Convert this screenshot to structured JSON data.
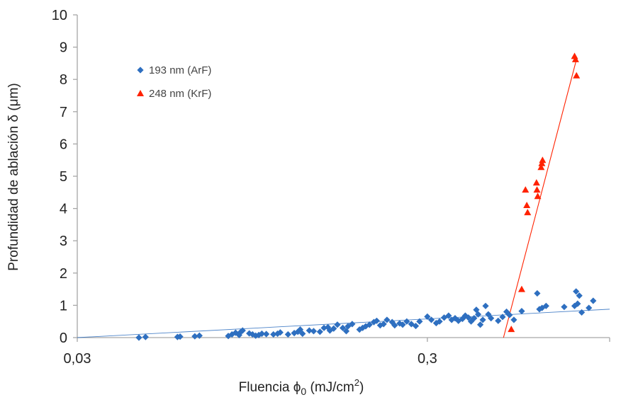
{
  "chart_data": {
    "type": "scatter",
    "title": "",
    "xlabel": "Fluencia ϕ",
    "xlabel_sub": "0",
    "xlabel_unit_pre": " (mJ/cm",
    "xlabel_unit_sup": "2",
    "xlabel_unit_post": ")",
    "ylabel": "Profundidad de ablación δ (μm)",
    "xscale": "log",
    "xlim": [
      0.03,
      0.995
    ],
    "ylim": [
      0,
      10
    ],
    "xticks": [
      0.03,
      0.3
    ],
    "xtick_labels": [
      "0,03",
      "0,3"
    ],
    "yticks": [
      0,
      1,
      2,
      3,
      4,
      5,
      6,
      7,
      8,
      9,
      10
    ],
    "ytick_labels": [
      "0",
      "1",
      "2",
      "3",
      "4",
      "5",
      "6",
      "7",
      "8",
      "9",
      "10"
    ],
    "grid": false,
    "legend_position": "top-left",
    "series": [
      {
        "name": "193 nm (ArF)",
        "marker": "diamond",
        "color": "#2e6fc0",
        "points": [
          [
            0.045,
            0.0
          ],
          [
            0.047,
            0.02
          ],
          [
            0.058,
            0.02
          ],
          [
            0.059,
            0.03
          ],
          [
            0.065,
            0.04
          ],
          [
            0.067,
            0.06
          ],
          [
            0.081,
            0.05
          ],
          [
            0.083,
            0.1
          ],
          [
            0.085,
            0.15
          ],
          [
            0.087,
            0.08
          ],
          [
            0.088,
            0.18
          ],
          [
            0.089,
            0.22
          ],
          [
            0.093,
            0.13
          ],
          [
            0.095,
            0.1
          ],
          [
            0.097,
            0.06
          ],
          [
            0.099,
            0.08
          ],
          [
            0.101,
            0.12
          ],
          [
            0.104,
            0.11
          ],
          [
            0.109,
            0.1
          ],
          [
            0.112,
            0.12
          ],
          [
            0.114,
            0.16
          ],
          [
            0.12,
            0.1
          ],
          [
            0.125,
            0.14
          ],
          [
            0.128,
            0.18
          ],
          [
            0.13,
            0.25
          ],
          [
            0.132,
            0.12
          ],
          [
            0.138,
            0.22
          ],
          [
            0.142,
            0.2
          ],
          [
            0.148,
            0.18
          ],
          [
            0.152,
            0.3
          ],
          [
            0.156,
            0.32
          ],
          [
            0.158,
            0.22
          ],
          [
            0.162,
            0.28
          ],
          [
            0.166,
            0.4
          ],
          [
            0.172,
            0.3
          ],
          [
            0.176,
            0.2
          ],
          [
            0.178,
            0.35
          ],
          [
            0.183,
            0.42
          ],
          [
            0.192,
            0.25
          ],
          [
            0.196,
            0.3
          ],
          [
            0.2,
            0.35
          ],
          [
            0.205,
            0.4
          ],
          [
            0.211,
            0.48
          ],
          [
            0.215,
            0.52
          ],
          [
            0.22,
            0.38
          ],
          [
            0.225,
            0.42
          ],
          [
            0.23,
            0.55
          ],
          [
            0.238,
            0.48
          ],
          [
            0.242,
            0.38
          ],
          [
            0.25,
            0.44
          ],
          [
            0.255,
            0.4
          ],
          [
            0.262,
            0.5
          ],
          [
            0.27,
            0.42
          ],
          [
            0.278,
            0.36
          ],
          [
            0.285,
            0.5
          ],
          [
            0.3,
            0.65
          ],
          [
            0.308,
            0.55
          ],
          [
            0.318,
            0.45
          ],
          [
            0.325,
            0.5
          ],
          [
            0.335,
            0.62
          ],
          [
            0.345,
            0.68
          ],
          [
            0.352,
            0.55
          ],
          [
            0.36,
            0.6
          ],
          [
            0.368,
            0.52
          ],
          [
            0.378,
            0.58
          ],
          [
            0.385,
            0.68
          ],
          [
            0.393,
            0.62
          ],
          [
            0.4,
            0.5
          ],
          [
            0.408,
            0.6
          ],
          [
            0.414,
            0.86
          ],
          [
            0.419,
            0.72
          ],
          [
            0.425,
            0.4
          ],
          [
            0.432,
            0.55
          ],
          [
            0.44,
            0.98
          ],
          [
            0.448,
            0.72
          ],
          [
            0.456,
            0.6
          ],
          [
            0.478,
            0.52
          ],
          [
            0.492,
            0.64
          ],
          [
            0.505,
            0.8
          ],
          [
            0.515,
            0.7
          ],
          [
            0.53,
            0.55
          ],
          [
            0.558,
            0.82
          ],
          [
            0.618,
            1.37
          ],
          [
            0.627,
            0.88
          ],
          [
            0.638,
            0.92
          ],
          [
            0.655,
            0.98
          ],
          [
            0.738,
            0.95
          ],
          [
            0.79,
            0.98
          ],
          [
            0.798,
            1.43
          ],
          [
            0.806,
            1.05
          ],
          [
            0.815,
            1.3
          ],
          [
            0.828,
            0.78
          ],
          [
            0.868,
            0.92
          ],
          [
            0.893,
            1.14
          ]
        ],
        "trendline": [
          [
            0.03,
            0.0
          ],
          [
            0.995,
            0.88
          ]
        ]
      },
      {
        "name": "248 nm (KrF)",
        "marker": "triangle",
        "color": "#ff2200",
        "points": [
          [
            0.521,
            0.26
          ],
          [
            0.558,
            1.5
          ],
          [
            0.572,
            4.58
          ],
          [
            0.577,
            4.1
          ],
          [
            0.58,
            3.88
          ],
          [
            0.615,
            4.8
          ],
          [
            0.617,
            4.58
          ],
          [
            0.62,
            4.38
          ],
          [
            0.634,
            5.28
          ],
          [
            0.637,
            5.4
          ],
          [
            0.64,
            5.5
          ],
          [
            0.79,
            8.72
          ],
          [
            0.795,
            8.62
          ],
          [
            0.8,
            8.12
          ]
        ],
        "trendline": [
          [
            0.495,
            0.0
          ],
          [
            0.8,
            8.62
          ]
        ]
      }
    ]
  }
}
